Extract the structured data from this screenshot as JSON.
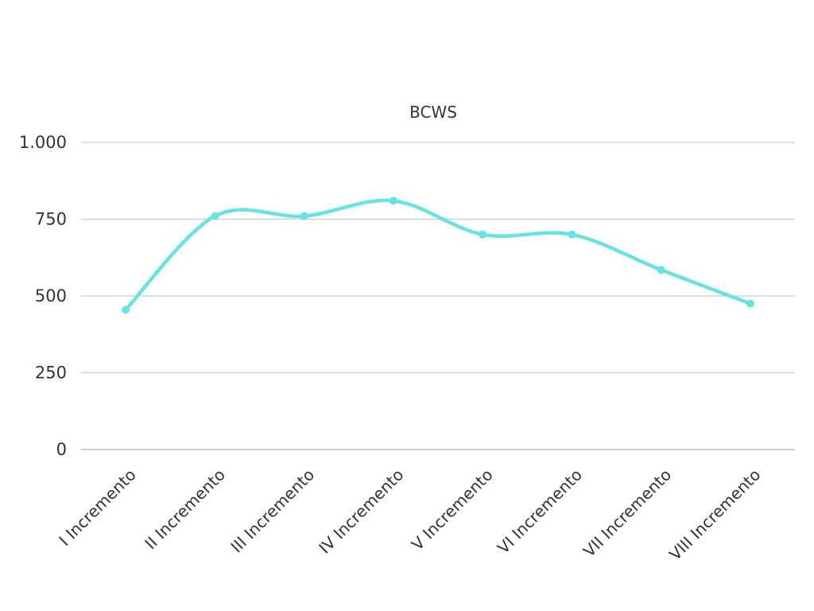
{
  "chart_data": {
    "type": "line",
    "title": "BCWS",
    "xlabel": "",
    "ylabel": "",
    "categories": [
      "I Incremento",
      "II Incremento",
      "III Incremento",
      "IV Incremento",
      "V Incremento",
      "VI Incremento",
      "VII Incremento",
      "VIII Incremento"
    ],
    "series": [
      {
        "name": "BCWS",
        "values": [
          455,
          760,
          760,
          810,
          700,
          700,
          585,
          475
        ],
        "color": "#66e3e3"
      }
    ],
    "ylim": [
      0,
      1000
    ],
    "yticks": [
      0,
      250,
      500,
      750,
      1000
    ],
    "ytick_labels": [
      "0",
      "250",
      "500",
      "750",
      "1.000"
    ],
    "grid": true,
    "legend": "none",
    "smooth": true
  }
}
